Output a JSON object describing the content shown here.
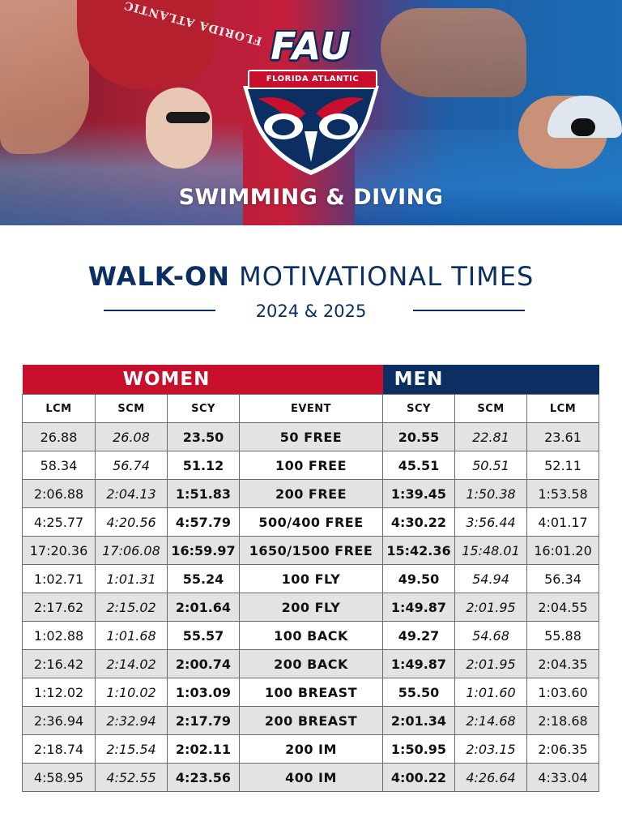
{
  "hero": {
    "logo_word": "FAU",
    "logo_banner": "FLORIDA ATLANTIC",
    "suit_text": "FLORIDA ATLANTIC",
    "title": "SWIMMING & DIVING"
  },
  "heading": {
    "bold": "WALK-ON",
    "rest": " MOTIVATIONAL TIMES",
    "sub": "2024 & 2025"
  },
  "colors": {
    "red": "#c8102e",
    "navy": "#0b2f63",
    "row_shade": "#e2e3e5"
  },
  "table": {
    "women_label": "WOMEN",
    "men_label": "MEN",
    "columns": [
      "LCM",
      "SCM",
      "SCY",
      "EVENT",
      "SCY",
      "SCM",
      "LCM"
    ],
    "rows": [
      {
        "w_lcm": "26.88",
        "w_scm": "26.08",
        "w_scy": "23.50",
        "event": "50 FREE",
        "m_scy": "20.55",
        "m_scm": "22.81",
        "m_lcm": "23.61"
      },
      {
        "w_lcm": "58.34",
        "w_scm": "56.74",
        "w_scy": "51.12",
        "event": "100 FREE",
        "m_scy": "45.51",
        "m_scm": "50.51",
        "m_lcm": "52.11"
      },
      {
        "w_lcm": "2:06.88",
        "w_scm": "2:04.13",
        "w_scy": "1:51.83",
        "event": "200 FREE",
        "m_scy": "1:39.45",
        "m_scm": "1:50.38",
        "m_lcm": "1:53.58"
      },
      {
        "w_lcm": "4:25.77",
        "w_scm": "4:20.56",
        "w_scy": "4:57.79",
        "event": "500/400 FREE",
        "m_scy": "4:30.22",
        "m_scm": "3:56.44",
        "m_lcm": "4:01.17"
      },
      {
        "w_lcm": "17:20.36",
        "w_scm": "17:06.08",
        "w_scy": "16:59.97",
        "event": "1650/1500 FREE",
        "m_scy": "15:42.36",
        "m_scm": "15:48.01",
        "m_lcm": "16:01.20"
      },
      {
        "w_lcm": "1:02.71",
        "w_scm": "1:01.31",
        "w_scy": "55.24",
        "event": "100 FLY",
        "m_scy": "49.50",
        "m_scm": "54.94",
        "m_lcm": "56.34"
      },
      {
        "w_lcm": "2:17.62",
        "w_scm": "2:15.02",
        "w_scy": "2:01.64",
        "event": "200 FLY",
        "m_scy": "1:49.87",
        "m_scm": "2:01.95",
        "m_lcm": "2:04.55"
      },
      {
        "w_lcm": "1:02.88",
        "w_scm": "1:01.68",
        "w_scy": "55.57",
        "event": "100 BACK",
        "m_scy": "49.27",
        "m_scm": "54.68",
        "m_lcm": "55.88"
      },
      {
        "w_lcm": "2:16.42",
        "w_scm": "2:14.02",
        "w_scy": "2:00.74",
        "event": "200 BACK",
        "m_scy": "1:49.87",
        "m_scm": "2:01.95",
        "m_lcm": "2:04.35"
      },
      {
        "w_lcm": "1:12.02",
        "w_scm": "1:10.02",
        "w_scy": "1:03.09",
        "event": "100 BREAST",
        "m_scy": "55.50",
        "m_scm": "1:01.60",
        "m_lcm": "1:03.60"
      },
      {
        "w_lcm": "2:36.94",
        "w_scm": "2:32.94",
        "w_scy": "2:17.79",
        "event": "200 BREAST",
        "m_scy": "2:01.34",
        "m_scm": "2:14.68",
        "m_lcm": "2:18.68"
      },
      {
        "w_lcm": "2:18.74",
        "w_scm": "2:15.54",
        "w_scy": "2:02.11",
        "event": "200 IM",
        "m_scy": "1:50.95",
        "m_scm": "2:03.15",
        "m_lcm": "2:06.35"
      },
      {
        "w_lcm": "4:58.95",
        "w_scm": "4:52.55",
        "w_scy": "4:23.56",
        "event": "400 IM",
        "m_scy": "4:00.22",
        "m_scm": "4:26.64",
        "m_lcm": "4:33.04"
      }
    ]
  }
}
